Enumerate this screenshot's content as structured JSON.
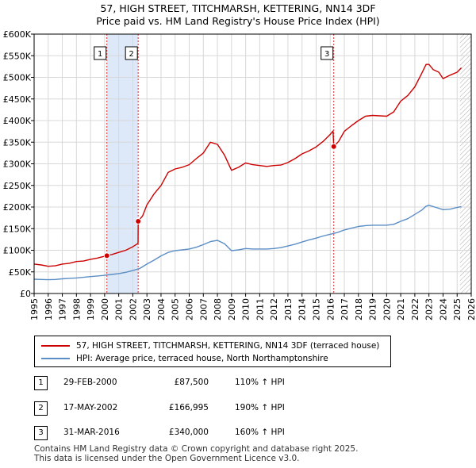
{
  "title_line1": "57, HIGH STREET, TITCHMARSH, KETTERING, NN14 3DF",
  "title_line2": "Price paid vs. HM Land Registry's House Price Index (HPI)",
  "colors": {
    "property": "#cc0000",
    "hpi": "#5b8ec6",
    "shade": "#dde8f8",
    "grid": "#d8d8d8",
    "marker_line": "#cc0000",
    "future_hatch": "#999999"
  },
  "chart_data": {
    "type": "line",
    "title": "Price paid vs. HM Land Registry's House Price Index (HPI)",
    "xlabel": "",
    "ylabel": "",
    "xlim": [
      1995,
      2026
    ],
    "ylim": [
      0,
      600000
    ],
    "x_ticks": [
      "1995",
      "1996",
      "1997",
      "1998",
      "1999",
      "2000",
      "2001",
      "2002",
      "2003",
      "2004",
      "2005",
      "2006",
      "2007",
      "2008",
      "2009",
      "2010",
      "2011",
      "2012",
      "2013",
      "2014",
      "2015",
      "2016",
      "2017",
      "2018",
      "2019",
      "2020",
      "2021",
      "2022",
      "2023",
      "2024",
      "2025",
      "2026"
    ],
    "y_ticks": [
      {
        "value": 0,
        "label": "£0"
      },
      {
        "value": 50000,
        "label": "£50K"
      },
      {
        "value": 100000,
        "label": "£100K"
      },
      {
        "value": 150000,
        "label": "£150K"
      },
      {
        "value": 200000,
        "label": "£200K"
      },
      {
        "value": 250000,
        "label": "£250K"
      },
      {
        "value": 300000,
        "label": "£300K"
      },
      {
        "value": 350000,
        "label": "£350K"
      },
      {
        "value": 400000,
        "label": "£400K"
      },
      {
        "value": 450000,
        "label": "£450K"
      },
      {
        "value": 500000,
        "label": "£500K"
      },
      {
        "value": 550000,
        "label": "£550K"
      },
      {
        "value": 600000,
        "label": "£600K"
      }
    ],
    "shaded_region": [
      2000.16,
      2002.38
    ],
    "future_from": 2025.2,
    "series": [
      {
        "name": "57, HIGH STREET, TITCHMARSH, KETTERING, NN14 3DF (terraced house)",
        "color": "#cc0000",
        "x": [
          1995.0,
          1995.5,
          1996.0,
          1996.5,
          1997.0,
          1997.5,
          1998.0,
          1998.5,
          1999.0,
          1999.5,
          2000.16,
          2000.5,
          2001.0,
          2001.5,
          2002.0,
          2002.37,
          2002.38,
          2002.7,
          2003.0,
          2003.5,
          2004.0,
          2004.5,
          2005.0,
          2005.5,
          2006.0,
          2006.5,
          2007.0,
          2007.5,
          2008.0,
          2008.5,
          2009.0,
          2009.5,
          2010.0,
          2010.5,
          2011.0,
          2011.5,
          2012.0,
          2012.5,
          2013.0,
          2013.5,
          2014.0,
          2014.5,
          2015.0,
          2015.5,
          2016.0,
          2016.2,
          2016.25,
          2016.6,
          2017.0,
          2017.5,
          2018.0,
          2018.5,
          2019.0,
          2019.5,
          2020.0,
          2020.5,
          2021.0,
          2021.5,
          2022.0,
          2022.5,
          2022.8,
          2023.0,
          2023.3,
          2023.7,
          2024.0,
          2024.5,
          2025.0,
          2025.3
        ],
        "values": [
          68000,
          66000,
          63000,
          64000,
          68000,
          70000,
          74000,
          75000,
          79000,
          82000,
          87500,
          90000,
          95000,
          100000,
          108000,
          116000,
          166995,
          180000,
          205000,
          230000,
          250000,
          280000,
          288000,
          292000,
          298000,
          312000,
          325000,
          350000,
          345000,
          320000,
          285000,
          292000,
          302000,
          298000,
          296000,
          294000,
          296000,
          297000,
          303000,
          312000,
          323000,
          330000,
          339000,
          352000,
          368000,
          376000,
          340000,
          352000,
          375000,
          388000,
          400000,
          410000,
          412000,
          411000,
          410000,
          420000,
          445000,
          458000,
          478000,
          510000,
          530000,
          530000,
          518000,
          512000,
          497000,
          505000,
          512000,
          522000
        ]
      },
      {
        "name": "HPI: Average price, terraced house, North Northamptonshire",
        "color": "#5b8ec6",
        "x": [
          1995.0,
          1995.5,
          1996.0,
          1996.5,
          1997.0,
          1997.5,
          1998.0,
          1998.5,
          1999.0,
          1999.5,
          2000.0,
          2000.5,
          2001.0,
          2001.5,
          2002.0,
          2002.5,
          2003.0,
          2003.5,
          2004.0,
          2004.5,
          2005.0,
          2005.5,
          2006.0,
          2006.5,
          2007.0,
          2007.5,
          2008.0,
          2008.5,
          2009.0,
          2009.5,
          2010.0,
          2010.5,
          2011.0,
          2011.5,
          2012.0,
          2012.5,
          2013.0,
          2013.5,
          2014.0,
          2014.5,
          2015.0,
          2015.5,
          2016.0,
          2016.5,
          2017.0,
          2017.5,
          2018.0,
          2018.5,
          2019.0,
          2019.5,
          2020.0,
          2020.5,
          2021.0,
          2021.5,
          2022.0,
          2022.5,
          2022.8,
          2023.0,
          2023.5,
          2024.0,
          2024.5,
          2025.0,
          2025.3
        ],
        "values": [
          33000,
          32500,
          32000,
          32500,
          34000,
          35000,
          36000,
          37500,
          39000,
          40500,
          42000,
          44000,
          46000,
          49000,
          53000,
          58000,
          68000,
          77000,
          87000,
          95000,
          99000,
          101000,
          103000,
          107000,
          113000,
          120000,
          123000,
          115000,
          99000,
          101000,
          104000,
          103000,
          103000,
          103000,
          104000,
          106000,
          110000,
          114000,
          119000,
          124000,
          128000,
          133000,
          137000,
          141000,
          147000,
          151000,
          155000,
          157000,
          158000,
          158000,
          158000,
          160000,
          167000,
          173000,
          183000,
          193000,
          202000,
          204000,
          199000,
          194000,
          195000,
          199000,
          201000
        ]
      }
    ],
    "sales": [
      {
        "num": "1",
        "x": 2000.16,
        "value": 87500
      },
      {
        "num": "2",
        "x": 2002.38,
        "value": 166995
      },
      {
        "num": "3",
        "x": 2016.25,
        "value": 340000
      }
    ]
  },
  "legend": {
    "property_label": "57, HIGH STREET, TITCHMARSH, KETTERING, NN14 3DF (terraced house)",
    "hpi_label": "HPI: Average price, terraced house, North Northamptonshire"
  },
  "transactions": [
    {
      "num": "1",
      "date": "29-FEB-2000",
      "price": "£87,500",
      "hpi": "110% ↑ HPI"
    },
    {
      "num": "2",
      "date": "17-MAY-2002",
      "price": "£166,995",
      "hpi": "190% ↑ HPI"
    },
    {
      "num": "3",
      "date": "31-MAR-2016",
      "price": "£340,000",
      "hpi": "160% ↑ HPI"
    }
  ],
  "footer_line1": "Contains HM Land Registry data © Crown copyright and database right 2025.",
  "footer_line2": "This data is licensed under the Open Government Licence v3.0."
}
